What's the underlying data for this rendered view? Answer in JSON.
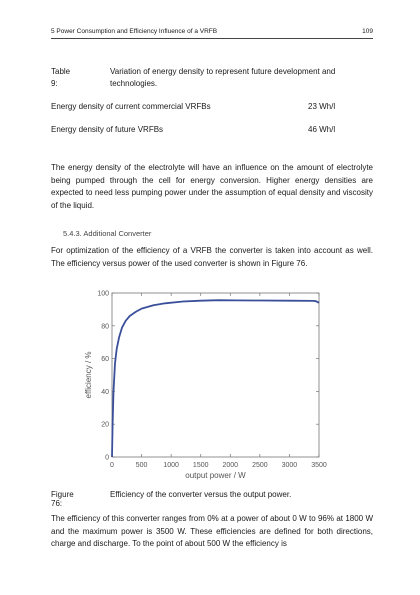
{
  "header": {
    "running_title": "5 Power Consumption and Efficiency Influence of a VRFB",
    "page_number": "109"
  },
  "table": {
    "label": "Table 9:",
    "caption": "Variation of energy density to represent future development and technologies.",
    "rows": [
      {
        "label": "Energy density of current commercial VRFBs",
        "value": "23 Wh/l"
      },
      {
        "label": "Energy density of future VRFBs",
        "value": "46 Wh/l"
      }
    ]
  },
  "paragraphs": {
    "p1": "The energy density of the electrolyte will have an influence on the amount of electrolyte being pumped through the cell for energy conversion. Higher energy densities are expected to need less pumping power under the assumption of equal density and viscosity of the liquid.",
    "p2": "For optimization of the efficiency of a VRFB the converter is taken into account as well. The efficiency versus power of the used converter is shown in Figure 76.",
    "p3": "The efficiency of this converter ranges from 0% at a power of about 0 W to 96% at 1800 W and the maximum power is 3500 W. These efficiencies are defined for both directions, charge and discharge. To the point of about 500 W the efficiency is"
  },
  "section": {
    "title": "5.4.3.  Additional Converter"
  },
  "figure": {
    "label": "Figure 76:",
    "caption": "Efficiency of the converter versus the output power."
  },
  "chart_data": {
    "type": "line",
    "xlabel": "output power / W",
    "ylabel": "efficiency / %",
    "xlim": [
      0,
      3500
    ],
    "ylim": [
      0,
      100
    ],
    "xticks": [
      0,
      500,
      1000,
      1500,
      2000,
      2500,
      3000,
      3500
    ],
    "yticks": [
      0,
      20,
      40,
      60,
      80,
      100
    ],
    "grid": false,
    "line_color": "#3a4f9a",
    "series": [
      {
        "x": [
          0,
          10,
          25,
          50,
          80,
          120,
          170,
          230,
          300,
          400,
          500,
          700,
          900,
          1200,
          1500,
          1800,
          2100,
          2500,
          3000,
          3400,
          3450,
          3500
        ],
        "y": [
          0,
          20,
          40,
          57,
          66,
          73,
          79,
          83,
          86,
          88.5,
          90.5,
          92.5,
          93.7,
          94.8,
          95.3,
          95.6,
          95.5,
          95.4,
          95.3,
          95.2,
          95,
          94
        ]
      }
    ]
  }
}
